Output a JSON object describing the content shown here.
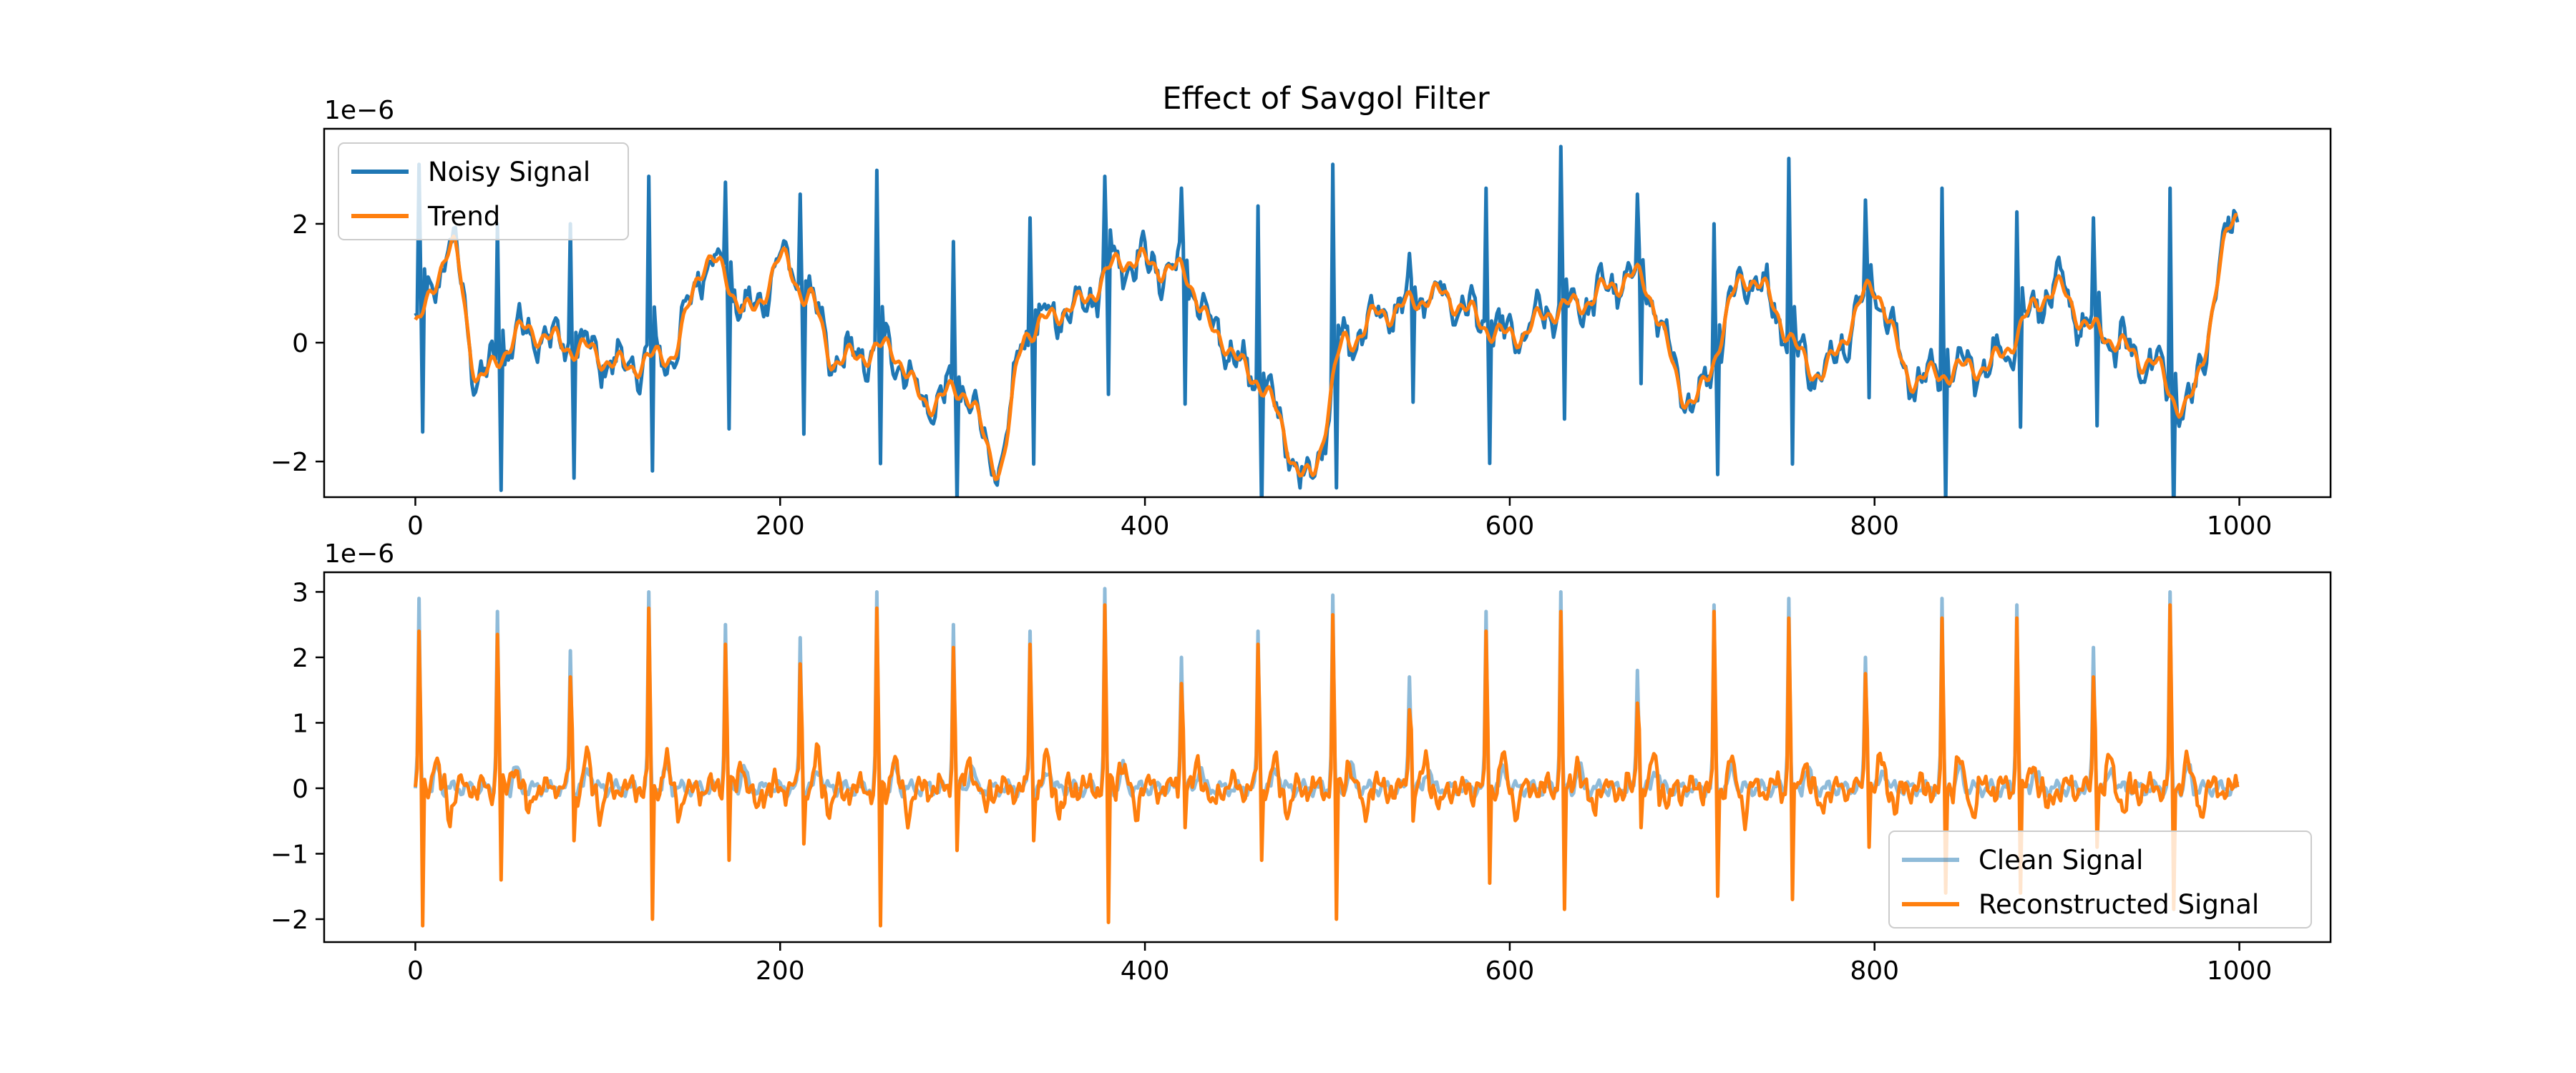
{
  "chart_data": [
    {
      "type": "line",
      "title": "Effect of Savgol Filter",
      "xlabel": "",
      "ylabel": "",
      "offset_label": "1e−6",
      "xlim": [
        -50,
        1050
      ],
      "ylim": [
        -2.6,
        3.6
      ],
      "xticks": [
        0,
        200,
        400,
        600,
        800,
        1000
      ],
      "xtick_labels": [
        "0",
        "200",
        "400",
        "600",
        "800",
        "1000"
      ],
      "yticks": [
        -2,
        0,
        2
      ],
      "ytick_labels": [
        "−2",
        "0",
        "2"
      ],
      "grid": false,
      "legend_position": "top-left",
      "n_points": 1000,
      "colors": {
        "blue": "#1f77b4",
        "orange": "#ff7f0e"
      },
      "series": [
        {
          "name": "Noisy Signal",
          "color": "#1f77b4",
          "kind": "noisy",
          "trend_knots": {
            "x": [
              0,
              20,
              35,
              60,
              90,
              115,
              140,
              160,
              185,
              200,
              215,
              230,
              260,
              280,
              300,
              320,
              335,
              360,
              390,
              420,
              440,
              460,
              490,
              510,
              530,
              560,
              600,
              630,
              670,
              700,
              730,
              770,
              800,
              820,
              860,
              900,
              920,
              950,
              970,
              1000
            ],
            "y": [
              0.3,
              1.6,
              -0.6,
              0.2,
              -0.1,
              -0.4,
              -0.2,
              1.4,
              0.5,
              1.4,
              0.8,
              -0.3,
              -0.1,
              -1.0,
              -0.8,
              -2.1,
              0.2,
              0.6,
              1.4,
              1.2,
              0.1,
              -0.6,
              -2.3,
              0.0,
              0.5,
              0.8,
              0.1,
              0.6,
              1.1,
              -1.0,
              1.1,
              -0.5,
              0.9,
              -0.6,
              -0.4,
              0.9,
              0.2,
              -0.3,
              -1.1,
              2.2
            ]
          },
          "spikes": [
            {
              "x": 2,
              "y": 3.0
            },
            {
              "x": 45,
              "y": 2.0
            },
            {
              "x": 85,
              "y": 2.0
            },
            {
              "x": 128,
              "y": 2.8
            },
            {
              "x": 170,
              "y": 2.7
            },
            {
              "x": 211,
              "y": 2.5
            },
            {
              "x": 253,
              "y": 2.9
            },
            {
              "x": 295,
              "y": 1.7
            },
            {
              "x": 337,
              "y": 2.1
            },
            {
              "x": 378,
              "y": 2.8
            },
            {
              "x": 420,
              "y": 2.6
            },
            {
              "x": 462,
              "y": 2.3
            },
            {
              "x": 503,
              "y": 3.0
            },
            {
              "x": 545,
              "y": 1.5
            },
            {
              "x": 587,
              "y": 2.6
            },
            {
              "x": 628,
              "y": 3.3
            },
            {
              "x": 670,
              "y": 2.5
            },
            {
              "x": 712,
              "y": 2.0
            },
            {
              "x": 753,
              "y": 3.1
            },
            {
              "x": 795,
              "y": 2.4
            },
            {
              "x": 837,
              "y": 2.6
            },
            {
              "x": 878,
              "y": 2.2
            },
            {
              "x": 920,
              "y": 2.1
            },
            {
              "x": 962,
              "y": 2.6
            }
          ]
        },
        {
          "name": "Trend",
          "color": "#ff7f0e",
          "kind": "smooth",
          "trend_knots": {
            "x": [
              0,
              20,
              35,
              60,
              90,
              115,
              140,
              160,
              185,
              200,
              215,
              230,
              260,
              280,
              300,
              320,
              335,
              360,
              390,
              420,
              440,
              460,
              490,
              510,
              530,
              560,
              600,
              630,
              670,
              700,
              730,
              770,
              800,
              820,
              860,
              900,
              920,
              950,
              970,
              1000
            ],
            "y": [
              0.3,
              1.6,
              -0.6,
              0.2,
              -0.1,
              -0.4,
              -0.2,
              1.4,
              0.5,
              1.4,
              0.8,
              -0.3,
              -0.1,
              -1.0,
              -0.8,
              -2.1,
              0.2,
              0.6,
              1.4,
              1.2,
              0.1,
              -0.6,
              -2.3,
              0.0,
              0.5,
              0.8,
              0.1,
              0.6,
              1.1,
              -1.0,
              1.1,
              -0.5,
              0.9,
              -0.6,
              -0.4,
              0.9,
              0.2,
              -0.3,
              -1.1,
              2.2
            ]
          }
        }
      ]
    },
    {
      "type": "line",
      "title": "",
      "xlabel": "",
      "ylabel": "",
      "offset_label": "1e−6",
      "xlim": [
        -50,
        1050
      ],
      "ylim": [
        -2.35,
        3.3
      ],
      "xticks": [
        0,
        200,
        400,
        600,
        800,
        1000
      ],
      "xtick_labels": [
        "0",
        "200",
        "400",
        "600",
        "800",
        "1000"
      ],
      "yticks": [
        -2,
        -1,
        0,
        1,
        2,
        3
      ],
      "ytick_labels": [
        "−2",
        "−1",
        "0",
        "1",
        "2",
        "3"
      ],
      "grid": false,
      "legend_position": "bottom-right",
      "n_points": 1000,
      "series": [
        {
          "name": "Clean Signal",
          "color": "#1f77b4",
          "opacity": 0.5,
          "kind": "ecg-clean",
          "peaks": [
            {
              "x": 2,
              "y": 2.9
            },
            {
              "x": 45,
              "y": 2.7
            },
            {
              "x": 85,
              "y": 2.1
            },
            {
              "x": 128,
              "y": 3.0
            },
            {
              "x": 170,
              "y": 2.5
            },
            {
              "x": 211,
              "y": 2.3
            },
            {
              "x": 253,
              "y": 3.0
            },
            {
              "x": 295,
              "y": 2.5
            },
            {
              "x": 337,
              "y": 2.4
            },
            {
              "x": 378,
              "y": 3.05
            },
            {
              "x": 420,
              "y": 2.0
            },
            {
              "x": 462,
              "y": 2.4
            },
            {
              "x": 503,
              "y": 2.95
            },
            {
              "x": 545,
              "y": 1.7
            },
            {
              "x": 587,
              "y": 2.7
            },
            {
              "x": 628,
              "y": 3.0
            },
            {
              "x": 670,
              "y": 1.8
            },
            {
              "x": 712,
              "y": 2.8
            },
            {
              "x": 753,
              "y": 2.9
            },
            {
              "x": 795,
              "y": 2.0
            },
            {
              "x": 837,
              "y": 2.9
            },
            {
              "x": 878,
              "y": 2.8
            },
            {
              "x": 920,
              "y": 2.15
            },
            {
              "x": 962,
              "y": 3.0
            }
          ]
        },
        {
          "name": "Reconstructed Signal",
          "color": "#ff7f0e",
          "opacity": 1,
          "kind": "ecg-recon",
          "peaks": [
            {
              "x": 2,
              "y": 2.4
            },
            {
              "x": 45,
              "y": 2.35
            },
            {
              "x": 85,
              "y": 1.7
            },
            {
              "x": 128,
              "y": 2.75
            },
            {
              "x": 170,
              "y": 2.2
            },
            {
              "x": 211,
              "y": 1.9
            },
            {
              "x": 253,
              "y": 2.75
            },
            {
              "x": 295,
              "y": 2.15
            },
            {
              "x": 337,
              "y": 2.2
            },
            {
              "x": 378,
              "y": 2.8
            },
            {
              "x": 420,
              "y": 1.6
            },
            {
              "x": 462,
              "y": 2.2
            },
            {
              "x": 503,
              "y": 2.65
            },
            {
              "x": 545,
              "y": 1.2
            },
            {
              "x": 587,
              "y": 2.4
            },
            {
              "x": 628,
              "y": 2.7
            },
            {
              "x": 670,
              "y": 1.3
            },
            {
              "x": 712,
              "y": 2.7
            },
            {
              "x": 753,
              "y": 2.6
            },
            {
              "x": 795,
              "y": 1.75
            },
            {
              "x": 837,
              "y": 2.6
            },
            {
              "x": 878,
              "y": 2.6
            },
            {
              "x": 920,
              "y": 1.7
            },
            {
              "x": 962,
              "y": 2.8
            }
          ],
          "troughs": [
            {
              "x": 4,
              "y": -2.1
            },
            {
              "x": 47,
              "y": -1.4
            },
            {
              "x": 87,
              "y": -0.8
            },
            {
              "x": 130,
              "y": -2.0
            },
            {
              "x": 172,
              "y": -1.1
            },
            {
              "x": 213,
              "y": -0.85
            },
            {
              "x": 255,
              "y": -2.1
            },
            {
              "x": 297,
              "y": -0.95
            },
            {
              "x": 339,
              "y": -0.8
            },
            {
              "x": 380,
              "y": -2.05
            },
            {
              "x": 422,
              "y": -0.6
            },
            {
              "x": 464,
              "y": -1.1
            },
            {
              "x": 505,
              "y": -2.0
            },
            {
              "x": 547,
              "y": -0.5
            },
            {
              "x": 589,
              "y": -1.45
            },
            {
              "x": 630,
              "y": -1.85
            },
            {
              "x": 672,
              "y": -0.6
            },
            {
              "x": 714,
              "y": -1.65
            },
            {
              "x": 755,
              "y": -1.7
            },
            {
              "x": 797,
              "y": -0.9
            },
            {
              "x": 839,
              "y": -1.6
            },
            {
              "x": 880,
              "y": -1.6
            },
            {
              "x": 922,
              "y": -0.9
            },
            {
              "x": 964,
              "y": -1.85
            }
          ]
        }
      ]
    }
  ]
}
